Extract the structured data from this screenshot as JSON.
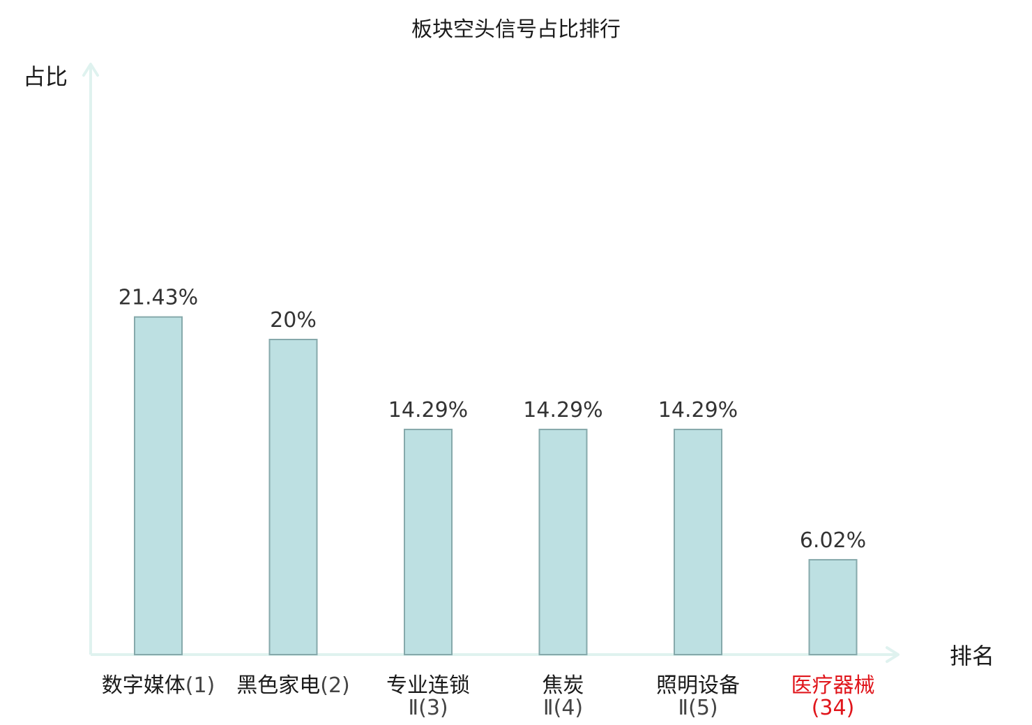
{
  "chart_data": {
    "type": "bar",
    "title": "板块空头信号占比排行",
    "xlabel": "排名",
    "ylabel": "占比",
    "ylim": [
      0,
      25
    ],
    "grid": false,
    "categories": [
      {
        "name": "数字媒体",
        "rank": "(1)",
        "highlight": false
      },
      {
        "name": "黑色家电",
        "rank": "(2)",
        "highlight": false
      },
      {
        "name": "专业连锁",
        "rank": "Ⅱ(3)",
        "highlight": false
      },
      {
        "name": "焦炭",
        "rank": "Ⅱ(4)",
        "highlight": false
      },
      {
        "name": "照明设备",
        "rank": "Ⅱ(5)",
        "highlight": false
      },
      {
        "name": "医疗器械",
        "rank": "(34)",
        "highlight": true
      }
    ],
    "values": [
      21.43,
      20,
      14.29,
      14.29,
      14.29,
      6.02
    ],
    "labels": [
      "21.43%",
      "20%",
      "14.29%",
      "14.29%",
      "14.29%",
      "6.02%"
    ],
    "colors": {
      "bar_fill": "#bde0e2",
      "bar_stroke": "#86a9ab",
      "axis": "#dff2ef",
      "highlight_text": "#e0151b",
      "normal_text": "#1a1a1a",
      "rank_text": "#444444"
    }
  }
}
